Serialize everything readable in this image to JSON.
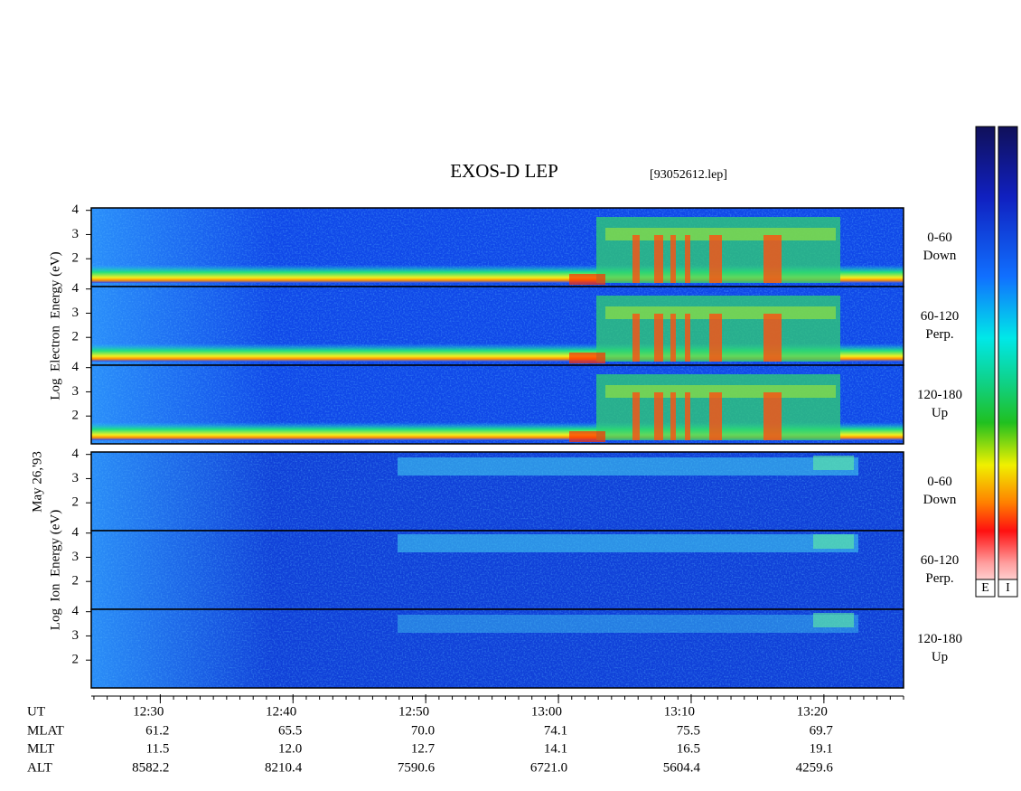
{
  "title": "EXOS-D LEP",
  "file": "[93052612.lep]",
  "date": "May 26,'93",
  "groups": [
    {
      "axis_label": "Log  Electron  Energy (eV)",
      "panels": [
        {
          "label": [
            "0-60",
            "Down"
          ]
        },
        {
          "label": [
            "60-120",
            "Perp."
          ]
        },
        {
          "label": [
            "120-180",
            "Up"
          ]
        }
      ]
    },
    {
      "axis_label": "Log  Ion  Energy (eV)",
      "panels": [
        {
          "label": [
            "0-60",
            "Down"
          ]
        },
        {
          "label": [
            "60-120",
            "Perp."
          ]
        },
        {
          "label": [
            "120-180",
            "Up"
          ]
        }
      ]
    }
  ],
  "ylim": [
    0.85,
    4.1
  ],
  "yticks": [
    2,
    3,
    4
  ],
  "xlim": [
    744.8,
    806
  ],
  "xticks": [
    {
      "value": 750,
      "label": "12:30"
    },
    {
      "value": 760,
      "label": "12:40"
    },
    {
      "value": 770,
      "label": "12:50"
    },
    {
      "value": 780,
      "label": "13:00"
    },
    {
      "value": 790,
      "label": "13:10"
    },
    {
      "value": 800,
      "label": "13:20"
    }
  ],
  "ephemeris": [
    {
      "name": "UT"
    },
    {
      "name": "MLAT",
      "values": [
        "61.2",
        "65.5",
        "70.0",
        "74.1",
        "75.5",
        "69.7"
      ]
    },
    {
      "name": "MLT",
      "values": [
        "11.5",
        "12.0",
        "12.7",
        "14.1",
        "16.5",
        "19.1"
      ]
    },
    {
      "name": "ALT",
      "values": [
        "8582.2",
        "8210.4",
        "7590.6",
        "6721.0",
        "5604.4",
        "4259.6"
      ]
    }
  ],
  "colorbar_labels": [
    "E",
    "I"
  ]
}
